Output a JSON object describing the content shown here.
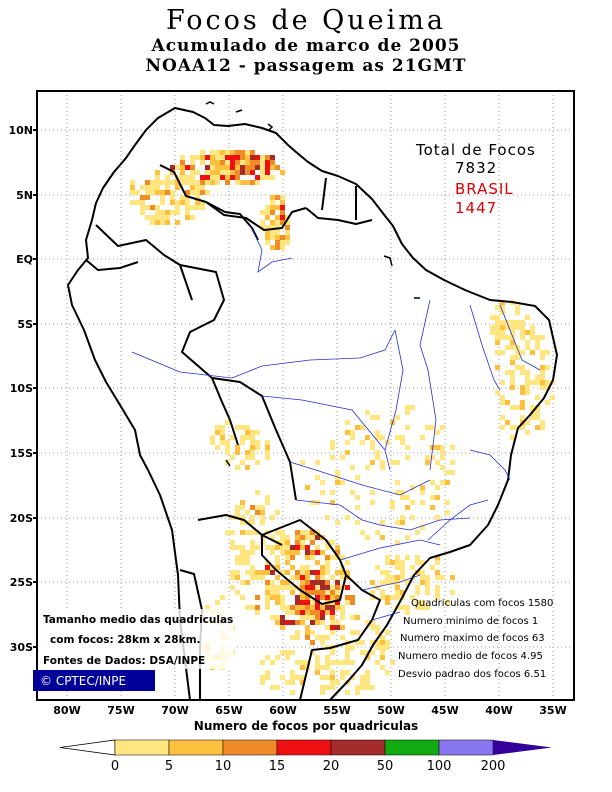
{
  "title": {
    "line1": "Focos de Queima",
    "line2": "Acumulado de marco de 2005",
    "line3": "NOAA12 - passagem as 21GMT"
  },
  "totals": {
    "total_label": "Total de Focos",
    "total_value": "7832",
    "country_label": "BRASIL",
    "country_value": "1447",
    "country_color": "#dd0000"
  },
  "stats": [
    "Quadriculas com focos 1580",
    "Numero minimo de focos 1",
    "Numero maximo de focos 63",
    "Numero medio de focos 4.95",
    "Desvio padrao dos focos 6.51"
  ],
  "notes": {
    "size_line1": "Tamanho medio das quadriculas",
    "size_line2": "com focos: 28km x 28km.",
    "source": "Fontes de Dados: DSA/INPE"
  },
  "logo": {
    "text": "© CPTEC/INPE",
    "color": "#000099"
  },
  "axes": {
    "lat_labels": [
      "10N",
      "5N",
      "EQ",
      "5S",
      "10S",
      "15S",
      "20S",
      "25S",
      "30S"
    ],
    "lon_labels": [
      "80W",
      "75W",
      "70W",
      "65W",
      "60W",
      "55W",
      "50W",
      "45W",
      "40W",
      "35W"
    ]
  },
  "colorbar": {
    "caption": "Numero de focos por quadriculas",
    "ticks": [
      "0",
      "5",
      "10",
      "15",
      "20",
      "50",
      "100",
      "200"
    ],
    "colors": [
      "#ffffff",
      "#ffe680",
      "#ffbf3f",
      "#f08c28",
      "#ee1111",
      "#a52a2a",
      "#11aa11",
      "#8877ee",
      "#330099"
    ]
  }
}
